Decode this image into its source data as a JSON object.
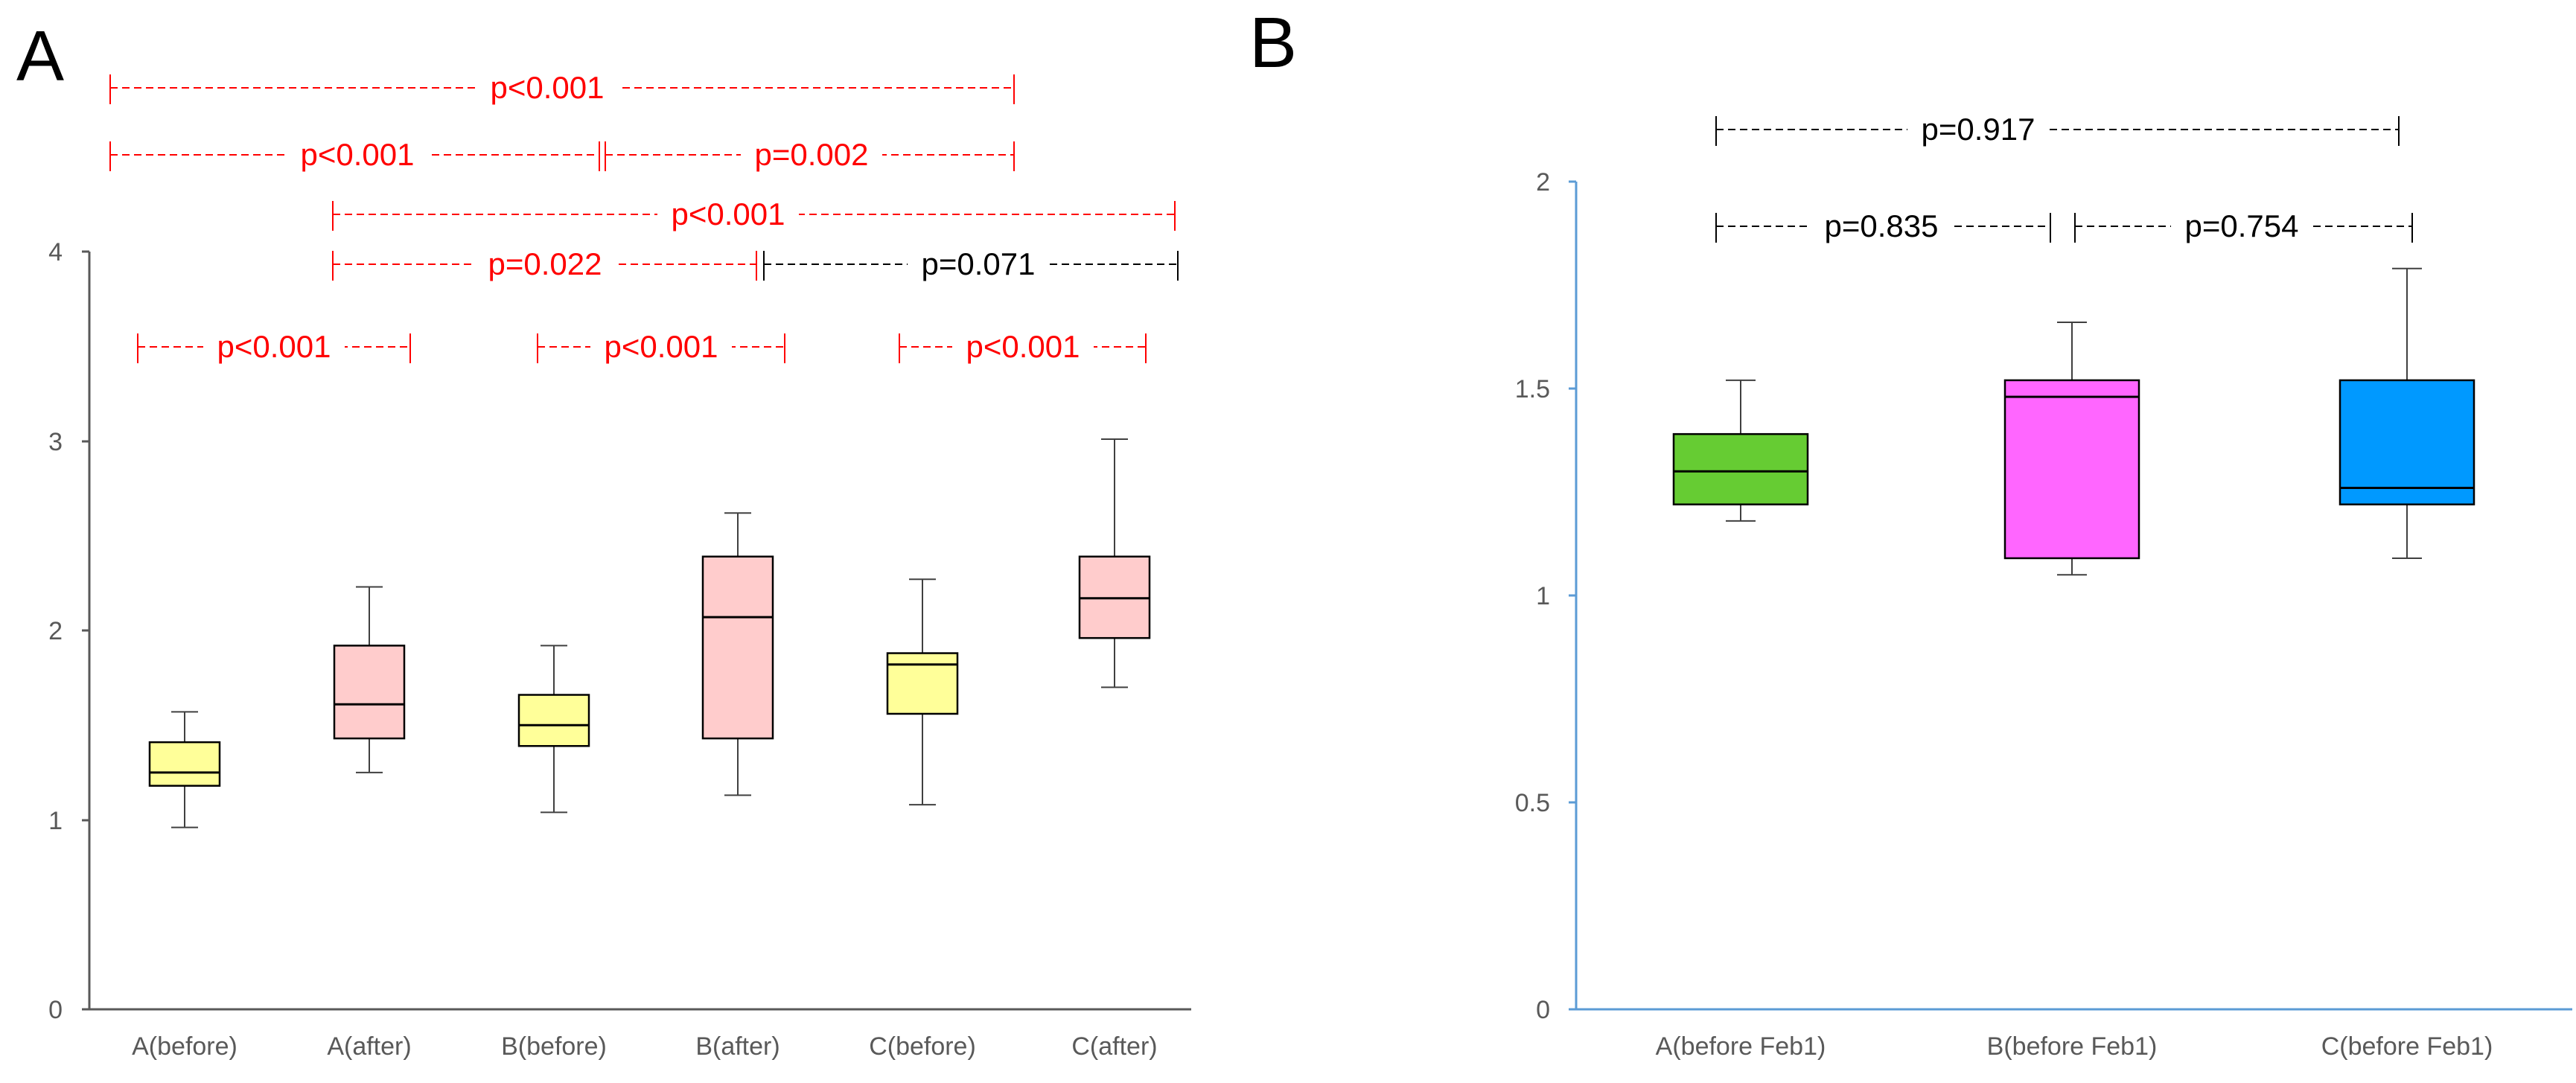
{
  "chart_data": [
    {
      "panel_label": "A",
      "type": "box",
      "ylim": [
        0,
        4
      ],
      "yticks": [
        "0",
        "1",
        "2",
        "3",
        "4"
      ],
      "categories": [
        "A(before)",
        "A(after)",
        "B(before)",
        "B(after)",
        "C(before)",
        "C(after)"
      ],
      "boxes": [
        {
          "category": "A(before)",
          "min": 0.96,
          "q1": 1.18,
          "median": 1.25,
          "q3": 1.41,
          "max": 1.57,
          "color": "#FFFF99"
        },
        {
          "category": "A(after)",
          "min": 1.25,
          "q1": 1.43,
          "median": 1.61,
          "q3": 1.92,
          "max": 2.23,
          "color": "#FFCCCC"
        },
        {
          "category": "B(before)",
          "min": 1.04,
          "q1": 1.39,
          "median": 1.5,
          "q3": 1.66,
          "max": 1.92,
          "color": "#FFFF99"
        },
        {
          "category": "B(after)",
          "min": 1.13,
          "q1": 1.43,
          "median": 2.07,
          "q3": 2.39,
          "max": 2.62,
          "color": "#FFCCCC"
        },
        {
          "category": "C(before)",
          "min": 1.08,
          "q1": 1.56,
          "median": 1.82,
          "q3": 1.88,
          "max": 2.27,
          "color": "#FFFF99"
        },
        {
          "category": "C(after)",
          "min": 1.7,
          "q1": 1.96,
          "median": 2.17,
          "q3": 2.39,
          "max": 3.01,
          "color": "#FFCCCC"
        }
      ],
      "comparisons": [
        {
          "from": 0,
          "to": 4,
          "text": "p<0.001",
          "color": "#FF0000"
        },
        {
          "from": 0,
          "to": 2,
          "text": "p<0.001",
          "color": "#FF0000"
        },
        {
          "from": 2,
          "to": 4,
          "text": "p=0.002",
          "color": "#FF0000"
        },
        {
          "from": 1,
          "to": 5,
          "text": "p<0.001",
          "color": "#FF0000"
        },
        {
          "from": 1,
          "to": 3,
          "text": "p=0.022",
          "color": "#FF0000"
        },
        {
          "from": 3,
          "to": 5,
          "text": "p=0.071",
          "color": "#000000"
        },
        {
          "from": 0,
          "to": 1,
          "text": "p<0.001",
          "color": "#FF0000"
        },
        {
          "from": 2,
          "to": 3,
          "text": "p<0.001",
          "color": "#FF0000"
        },
        {
          "from": 4,
          "to": 5,
          "text": "p<0.001",
          "color": "#FF0000"
        }
      ]
    },
    {
      "panel_label": "B",
      "type": "box",
      "ylim": [
        0,
        2
      ],
      "yticks": [
        "0",
        "0.5",
        "1",
        "1.5",
        "2"
      ],
      "categories": [
        "A(before Feb1)",
        "B(before Feb1)",
        "C(before Feb1)"
      ],
      "boxes": [
        {
          "category": "A(before Feb1)",
          "min": 1.18,
          "q1": 1.22,
          "median": 1.3,
          "q3": 1.39,
          "max": 1.52,
          "color": "#66CC33"
        },
        {
          "category": "B(before Feb1)",
          "min": 1.05,
          "q1": 1.09,
          "median": 1.48,
          "q3": 1.52,
          "max": 1.66,
          "color": "#FF66FF"
        },
        {
          "category": "C(before Feb1)",
          "min": 1.09,
          "q1": 1.22,
          "median": 1.26,
          "q3": 1.52,
          "max": 1.79,
          "color": "#0099FF"
        }
      ],
      "comparisons": [
        {
          "from": 0,
          "to": 2,
          "text": "p=0.917",
          "color": "#000000"
        },
        {
          "from": 0,
          "to": 1,
          "text": "p=0.835",
          "color": "#000000"
        },
        {
          "from": 1,
          "to": 2,
          "text": "p=0.754",
          "color": "#000000"
        }
      ]
    }
  ]
}
